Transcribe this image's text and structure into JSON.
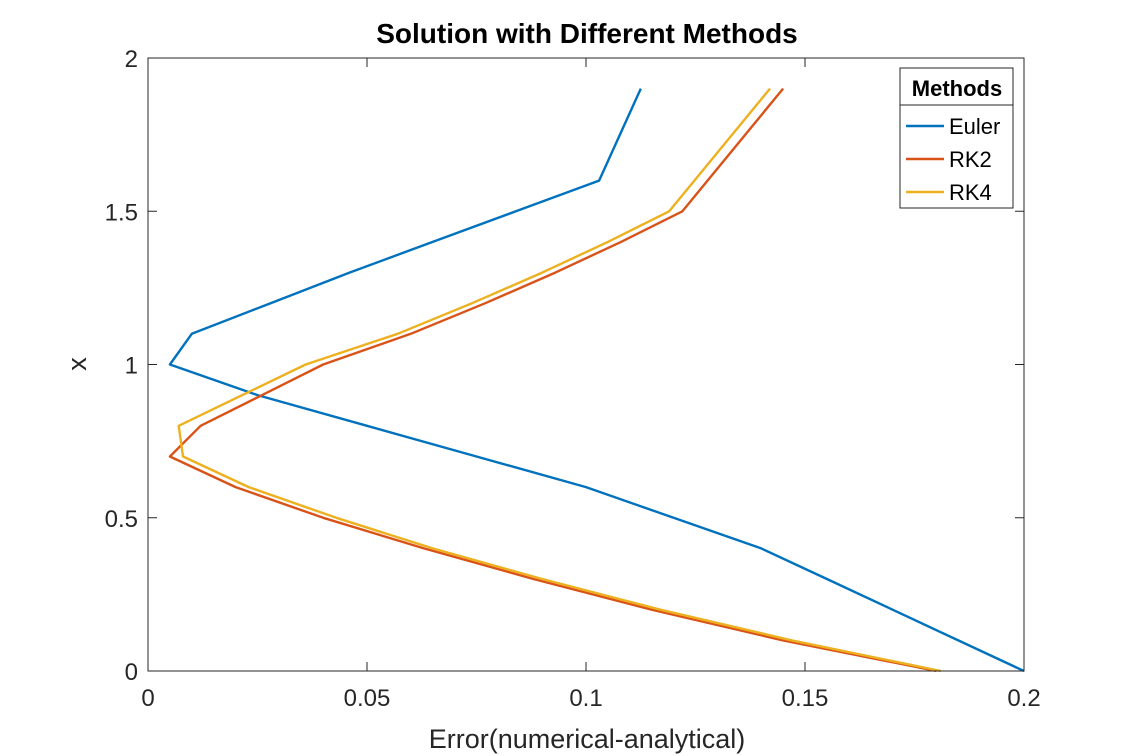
{
  "chart_data": {
    "type": "line",
    "title": "Solution with Different Methods",
    "xlabel": "Error(numerical-analytical)",
    "ylabel": "x",
    "xlim": [
      0,
      0.2
    ],
    "ylim": [
      0,
      2
    ],
    "xticks": [
      0,
      0.05,
      0.1,
      0.15,
      0.2
    ],
    "xtick_labels": [
      "0",
      "0.05",
      "0.1",
      "0.15",
      "0.2"
    ],
    "yticks": [
      0,
      0.5,
      1,
      1.5,
      2
    ],
    "ytick_labels": [
      "0",
      "0.5",
      "1",
      "1.5",
      "2"
    ],
    "grid": false,
    "legend": {
      "title": "Methods",
      "location": "top-right"
    },
    "series": [
      {
        "name": "Euler",
        "color": "#0072BD",
        "x": [
          0.2,
          0.185,
          0.17,
          0.155,
          0.14,
          0.12,
          0.1,
          0.075,
          0.05,
          0.025,
          0.005,
          0.01,
          0.028,
          0.046,
          0.065,
          0.084,
          0.103,
          0.1125
        ],
        "y": [
          0,
          0.1,
          0.2,
          0.3,
          0.4,
          0.5,
          0.6,
          0.7,
          0.8,
          0.9,
          1.0,
          1.1,
          1.2,
          1.3,
          1.4,
          1.5,
          1.6,
          1.9
        ]
      },
      {
        "name": "RK2",
        "color": "#D95319",
        "x": [
          0.18,
          0.145,
          0.115,
          0.088,
          0.063,
          0.04,
          0.02,
          0.005,
          0.012,
          0.04,
          0.06,
          0.077,
          0.093,
          0.108,
          0.122,
          0.145
        ],
        "y": [
          0,
          0.1,
          0.2,
          0.3,
          0.4,
          0.5,
          0.6,
          0.7,
          0.8,
          1.0,
          1.1,
          1.2,
          1.3,
          1.4,
          1.5,
          1.9
        ]
      },
      {
        "name": "RK4",
        "color": "#EDB120",
        "x": [
          0.181,
          0.147,
          0.117,
          0.09,
          0.065,
          0.043,
          0.023,
          0.008,
          0.007,
          0.036,
          0.057,
          0.074,
          0.09,
          0.105,
          0.119,
          0.142
        ],
        "y": [
          0,
          0.1,
          0.2,
          0.3,
          0.4,
          0.5,
          0.6,
          0.7,
          0.8,
          1.0,
          1.1,
          1.2,
          1.3,
          1.4,
          1.5,
          1.9
        ]
      }
    ]
  }
}
